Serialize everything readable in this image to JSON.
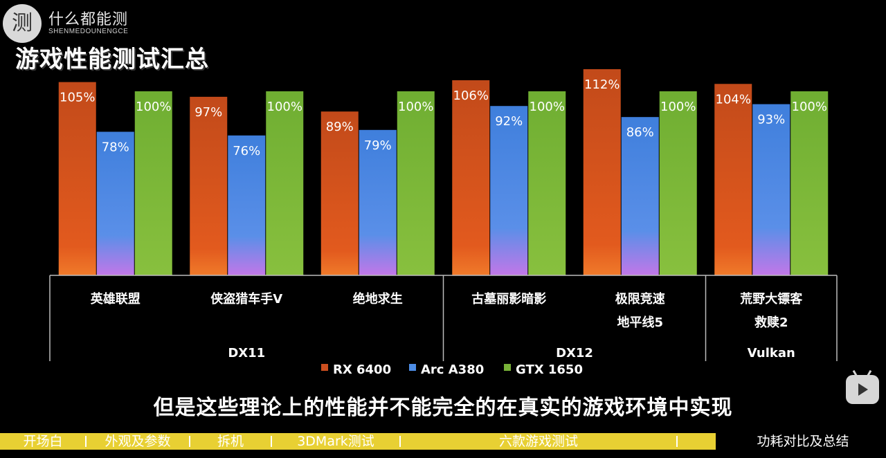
{
  "logo": {
    "icon_char": "测",
    "name": "什么都能测",
    "sub": "SHENMEDOUNENGCE"
  },
  "title": "游戏性能测试汇总",
  "subtitle": "但是这些理论上的性能并不能完全的在真实的游戏环境中实现",
  "progress_bar": {
    "segments": [
      "开场白",
      "外观及参数",
      "拆机",
      "3DMark测试",
      "六款游戏测试"
    ],
    "last": "功耗对比及总结",
    "color": "#e8d033"
  },
  "chart_data": {
    "type": "bar",
    "title": "",
    "ylabel": "",
    "ylim": [
      0,
      112
    ],
    "categories": [
      [
        "英雄联盟"
      ],
      [
        "侠盗猎车手V"
      ],
      [
        "绝地求生"
      ],
      [
        "古墓丽影暗影"
      ],
      [
        "极限竞速",
        "地平线5"
      ],
      [
        "荒野大镖客",
        "救赎2"
      ]
    ],
    "api_groups": [
      {
        "name": "DX11",
        "count": 3
      },
      {
        "name": "DX12",
        "count": 2
      },
      {
        "name": "Vulkan",
        "count": 1
      }
    ],
    "series": [
      {
        "name": "RX 6400",
        "values": [
          105,
          97,
          89,
          106,
          112,
          104
        ],
        "color": "#cc4f1f"
      },
      {
        "name": "Arc A380",
        "values": [
          78,
          76,
          79,
          92,
          86,
          93
        ],
        "color": "#4d8de6"
      },
      {
        "name": "GTX 1650",
        "values": [
          100,
          100,
          100,
          100,
          100,
          100
        ],
        "color": "#78b238"
      }
    ],
    "label_suffix": "%",
    "legend_position": "bottom"
  }
}
